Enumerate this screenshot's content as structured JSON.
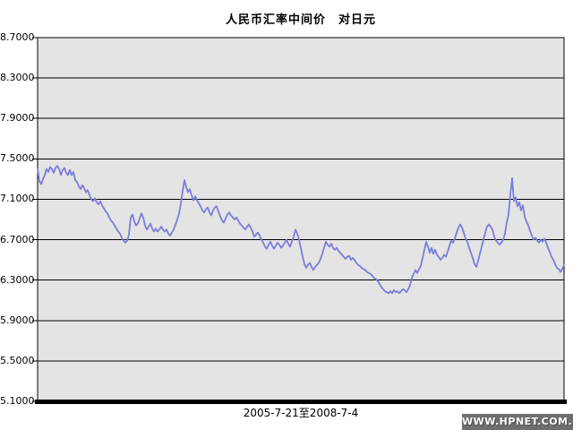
{
  "title": "人民币汇率中间价　对日元",
  "x_axis_label": "2005-7-21至2008-7-4",
  "watermark": "WWW.HPNET.COM.CN",
  "colors": {
    "page_bg": "#ffffff",
    "plot_bg": "#e4e4e4",
    "grid": "#000000",
    "line": "#7c7cdb",
    "axis": "#000000",
    "watermark_bg": "#6e6e6e",
    "watermark_text": "#ffffff"
  },
  "chart_data": {
    "type": "line",
    "title": "人民币汇率中间价　对日元",
    "xlabel": "2005-7-21至2008-7-4",
    "ylabel": "",
    "x_start": "2005-7-21",
    "x_end": "2008-7-4",
    "ylim": [
      5.1,
      8.7
    ],
    "ytick_interval": 0.4,
    "yticks": [
      "8.7000",
      "8.3000",
      "7.9000",
      "7.5000",
      "7.1000",
      "6.7000",
      "6.3000",
      "5.9000",
      "5.5000",
      "5.1000"
    ],
    "grid": true,
    "legend": false,
    "series": [
      {
        "name": "中间价",
        "values": [
          7.4,
          7.28,
          7.25,
          7.3,
          7.34,
          7.4,
          7.37,
          7.42,
          7.4,
          7.36,
          7.41,
          7.43,
          7.4,
          7.34,
          7.39,
          7.41,
          7.36,
          7.34,
          7.39,
          7.34,
          7.37,
          7.29,
          7.27,
          7.23,
          7.2,
          7.24,
          7.21,
          7.17,
          7.19,
          7.14,
          7.1,
          7.08,
          7.11,
          7.07,
          7.05,
          7.08,
          7.04,
          7.01,
          6.98,
          6.96,
          6.92,
          6.89,
          6.87,
          6.84,
          6.81,
          6.78,
          6.76,
          6.72,
          6.69,
          6.67,
          6.69,
          6.75,
          6.92,
          6.95,
          6.88,
          6.84,
          6.86,
          6.91,
          6.96,
          6.92,
          6.84,
          6.8,
          6.83,
          6.86,
          6.81,
          6.78,
          6.81,
          6.78,
          6.8,
          6.83,
          6.8,
          6.78,
          6.8,
          6.76,
          6.74,
          6.77,
          6.8,
          6.85,
          6.9,
          6.96,
          7.06,
          7.18,
          7.29,
          7.22,
          7.17,
          7.2,
          7.14,
          7.09,
          7.13,
          7.09,
          7.06,
          7.03,
          6.99,
          6.97,
          7.0,
          7.02,
          6.97,
          6.94,
          6.99,
          7.02,
          7.03,
          6.98,
          6.93,
          6.89,
          6.87,
          6.91,
          6.95,
          6.97,
          6.94,
          6.92,
          6.9,
          6.92,
          6.89,
          6.86,
          6.84,
          6.82,
          6.8,
          6.83,
          6.85,
          6.82,
          6.78,
          6.73,
          6.75,
          6.77,
          6.74,
          6.7,
          6.67,
          6.63,
          6.61,
          6.65,
          6.68,
          6.64,
          6.61,
          6.64,
          6.67,
          6.65,
          6.62,
          6.64,
          6.67,
          6.7,
          6.66,
          6.63,
          6.68,
          6.73,
          6.8,
          6.76,
          6.7,
          6.62,
          6.53,
          6.46,
          6.42,
          6.45,
          6.47,
          6.43,
          6.4,
          6.43,
          6.45,
          6.47,
          6.51,
          6.56,
          6.62,
          6.68,
          6.65,
          6.63,
          6.66,
          6.62,
          6.6,
          6.62,
          6.59,
          6.57,
          6.55,
          6.53,
          6.51,
          6.53,
          6.54,
          6.5,
          6.52,
          6.5,
          6.47,
          6.45,
          6.44,
          6.42,
          6.41,
          6.4,
          6.38,
          6.37,
          6.36,
          6.34,
          6.32,
          6.31,
          6.29,
          6.26,
          6.23,
          6.21,
          6.19,
          6.18,
          6.17,
          6.19,
          6.17,
          6.2,
          6.18,
          6.19,
          6.17,
          6.19,
          6.21,
          6.2,
          6.18,
          6.21,
          6.25,
          6.32,
          6.36,
          6.4,
          6.37,
          6.41,
          6.44,
          6.52,
          6.6,
          6.68,
          6.63,
          6.57,
          6.62,
          6.56,
          6.6,
          6.55,
          6.53,
          6.5,
          6.52,
          6.55,
          6.53,
          6.58,
          6.64,
          6.69,
          6.67,
          6.71,
          6.77,
          6.82,
          6.85,
          6.82,
          6.77,
          6.71,
          6.68,
          6.62,
          6.57,
          6.52,
          6.46,
          6.43,
          6.49,
          6.56,
          6.63,
          6.7,
          6.77,
          6.83,
          6.85,
          6.83,
          6.8,
          6.73,
          6.69,
          6.67,
          6.65,
          6.67,
          6.7,
          6.76,
          6.87,
          6.95,
          7.15,
          7.31,
          7.08,
          7.12,
          7.03,
          7.07,
          6.99,
          7.04,
          6.93,
          6.88,
          6.84,
          6.79,
          6.74,
          6.7,
          6.72,
          6.69,
          6.67,
          6.7,
          6.68,
          6.71,
          6.67,
          6.62,
          6.58,
          6.53,
          6.5,
          6.46,
          6.42,
          6.41,
          6.38,
          6.41,
          6.45
        ]
      }
    ]
  }
}
